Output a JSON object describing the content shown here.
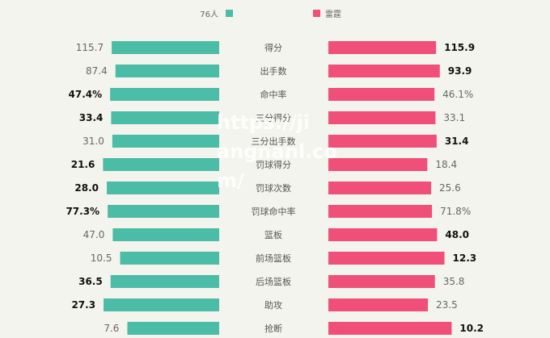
{
  "chart_data": {
    "type": "bar",
    "orientation": "horizontal-diverging",
    "legend_position": "top",
    "series": [
      {
        "name": "76人",
        "color": "#4bbca6",
        "values": [
          115.7,
          87.4,
          47.4,
          33.4,
          31.0,
          21.6,
          28.0,
          77.3,
          47.0,
          10.5,
          36.5,
          27.3,
          7.6
        ],
        "labels": [
          "115.7",
          "87.4",
          "47.4%",
          "33.4",
          "31.0",
          "21.6",
          "28.0",
          "77.3%",
          "47.0",
          "10.5",
          "36.5",
          "27.3",
          "7.6"
        ]
      },
      {
        "name": "雷霆",
        "color": "#ef4f79",
        "values": [
          115.9,
          93.9,
          46.1,
          33.1,
          31.4,
          18.4,
          25.6,
          71.8,
          48.0,
          12.3,
          35.8,
          23.5,
          10.2
        ],
        "labels": [
          "115.9",
          "93.9",
          "46.1%",
          "33.1",
          "31.4",
          "18.4",
          "25.6",
          "71.8%",
          "48.0",
          "12.3",
          "35.8",
          "23.5",
          "10.2"
        ]
      }
    ],
    "categories": [
      "得分",
      "出手数",
      "命中率",
      "三分得分",
      "三分出手数",
      "罚球得分",
      "罚球次数",
      "罚球命中率",
      "篮板",
      "前场篮板",
      "后场篮板",
      "助攻",
      "抢断"
    ]
  },
  "watermark": {
    "lines": [
      "https://ji",
      "angnanl.co",
      "m/"
    ]
  }
}
